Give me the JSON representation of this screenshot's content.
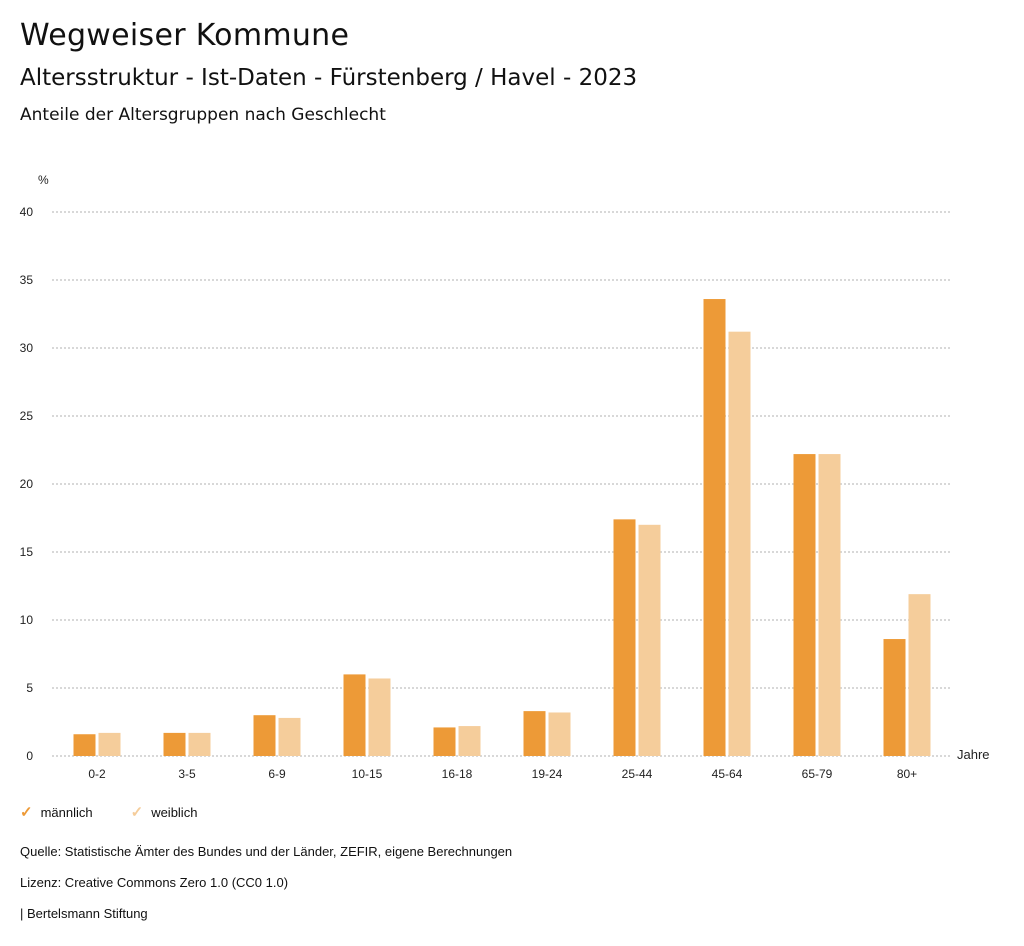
{
  "header": {
    "title": "Wegweiser Kommune",
    "subtitle": "Altersstruktur - Ist-Daten - Fürstenberg / Havel - 2023",
    "description": "Anteile der Altersgruppen nach Geschlecht"
  },
  "legend": {
    "male_label": "männlich",
    "female_label": "weiblich",
    "check_glyph": "✓"
  },
  "footer": {
    "source": "Quelle: Statistische Ämter des Bundes und der Länder, ZEFIR, eigene Berechnungen",
    "license": "Lizenz: Creative Commons Zero 1.0 (CC0 1.0)",
    "publisher": "| Bertelsmann Stiftung"
  },
  "colors": {
    "male": "#ed9a37",
    "female": "#f5cd9b",
    "grid": "#b0b0b0"
  },
  "chart_data": {
    "type": "bar",
    "title": "Anteile der Altersgruppen nach Geschlecht",
    "ylabel": "%",
    "xlabel": "Jahre",
    "ylim": [
      0,
      40
    ],
    "yticks": [
      0,
      5,
      10,
      15,
      20,
      25,
      30,
      35,
      40
    ],
    "grid": true,
    "legend_position": "bottom-left",
    "categories": [
      "0-2",
      "3-5",
      "6-9",
      "10-15",
      "16-18",
      "19-24",
      "25-44",
      "45-64",
      "65-79",
      "80+"
    ],
    "series": [
      {
        "name": "männlich",
        "values": [
          1.6,
          1.7,
          3.0,
          6.0,
          2.1,
          3.3,
          17.4,
          33.6,
          22.2,
          8.6
        ]
      },
      {
        "name": "weiblich",
        "values": [
          1.7,
          1.7,
          2.8,
          5.7,
          2.2,
          3.2,
          17.0,
          31.2,
          22.2,
          11.9
        ]
      }
    ]
  }
}
